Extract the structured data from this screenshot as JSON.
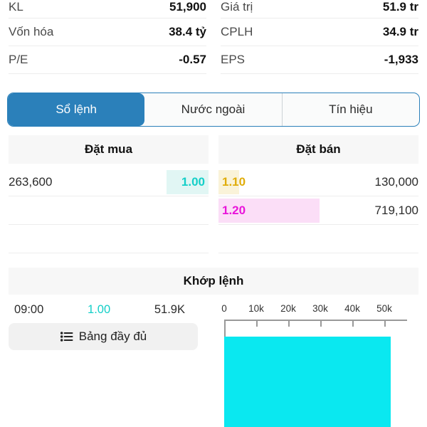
{
  "colors": {
    "accent_blue": "#2b80ba",
    "buy_price": "#14cfc8",
    "buy_depth_bg": "#e1f6f4",
    "sell1_price": "#e0ad0b",
    "sell1_depth_bg": "#faf3d9",
    "sell2_price": "#e914da",
    "sell2_depth_bg": "#fbdef7",
    "volume_bar": "#0ae8f0"
  },
  "stats": {
    "left": [
      {
        "label": "KL",
        "value": "51,900"
      },
      {
        "label": "Vốn hóa",
        "value": "38.4 tỷ"
      },
      {
        "label": "P/E",
        "value": "-0.57"
      }
    ],
    "right": [
      {
        "label": "Giá trị",
        "value": "51.9 tr"
      },
      {
        "label": "CPLH",
        "value": "34.9 tr"
      },
      {
        "label": "EPS",
        "value": "-1,933"
      }
    ]
  },
  "tabs": [
    {
      "label": "Sổ lệnh",
      "active": true
    },
    {
      "label": "Nước ngoài",
      "active": false
    },
    {
      "label": "Tín hiệu",
      "active": false
    }
  ],
  "orderbook": {
    "buy_header": "Đặt mua",
    "sell_header": "Đặt bán",
    "buy_rows": [
      {
        "volume": "263,600",
        "volume_value": 263600,
        "price": "1.00"
      }
    ],
    "sell_rows": [
      {
        "price": "1.10",
        "volume": "130,000",
        "volume_value": 130000
      },
      {
        "price": "1.20",
        "volume": "719,100",
        "volume_value": 719100
      }
    ]
  },
  "matched": {
    "header": "Khớp lệnh",
    "trades": [
      {
        "time": "09:00",
        "price": "1.00",
        "volume": "51.9K"
      }
    ],
    "full_board_button": "Bảng đầy đủ"
  },
  "chart_data": {
    "type": "bar",
    "orientation": "horizontal",
    "categories": [
      "09:00"
    ],
    "values": [
      51900
    ],
    "tick_labels": [
      "0",
      "10k",
      "20k",
      "30k",
      "40k",
      "50k"
    ],
    "tick_values": [
      0,
      10000,
      20000,
      30000,
      40000,
      50000
    ],
    "xlim": [
      0,
      57000
    ],
    "bar_color": "#0ae8f0",
    "ylabel": "",
    "xlabel": "",
    "title": ""
  }
}
